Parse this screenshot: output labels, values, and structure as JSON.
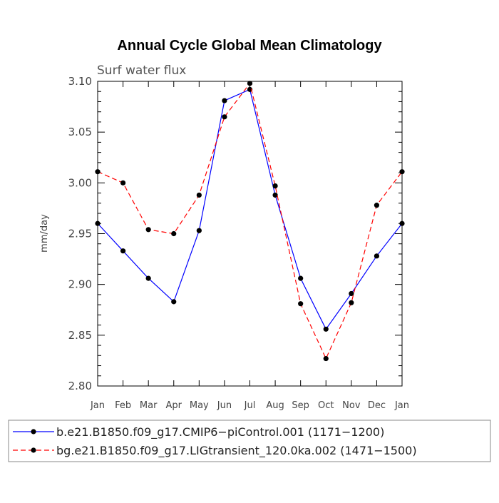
{
  "chart_data": {
    "type": "line",
    "title": "Annual Cycle Global Mean Climatology",
    "subtitle": "Surf water flux",
    "xlabel": "",
    "ylabel": "mm/day",
    "categories": [
      "Jan",
      "Feb",
      "Mar",
      "Apr",
      "May",
      "Jun",
      "Jul",
      "Aug",
      "Sep",
      "Oct",
      "Nov",
      "Dec",
      "Jan"
    ],
    "ylim": [
      2.8,
      3.1
    ],
    "yticks": [
      "2.80",
      "2.85",
      "2.90",
      "2.95",
      "3.00",
      "3.05",
      "3.10"
    ],
    "grid": false,
    "legend_position": "bottom",
    "series": [
      {
        "name": "b.e21.B1850.f09_g17.CMIP6−piControl.001 (1171−1200)",
        "color": "#0000ff",
        "line_style": "solid",
        "values": [
          2.96,
          2.933,
          2.906,
          2.883,
          2.953,
          3.081,
          3.092,
          2.988,
          2.906,
          2.856,
          2.891,
          2.928,
          2.96
        ]
      },
      {
        "name": "bg.e21.B1850.f09_g17.LIGtransient_120.0ka.002 (1471−1500)",
        "color": "#ff0000",
        "line_style": "dashed",
        "values": [
          3.011,
          3.0,
          2.954,
          2.95,
          2.988,
          3.065,
          3.098,
          2.997,
          2.881,
          2.827,
          2.882,
          2.978,
          3.011
        ]
      }
    ]
  }
}
